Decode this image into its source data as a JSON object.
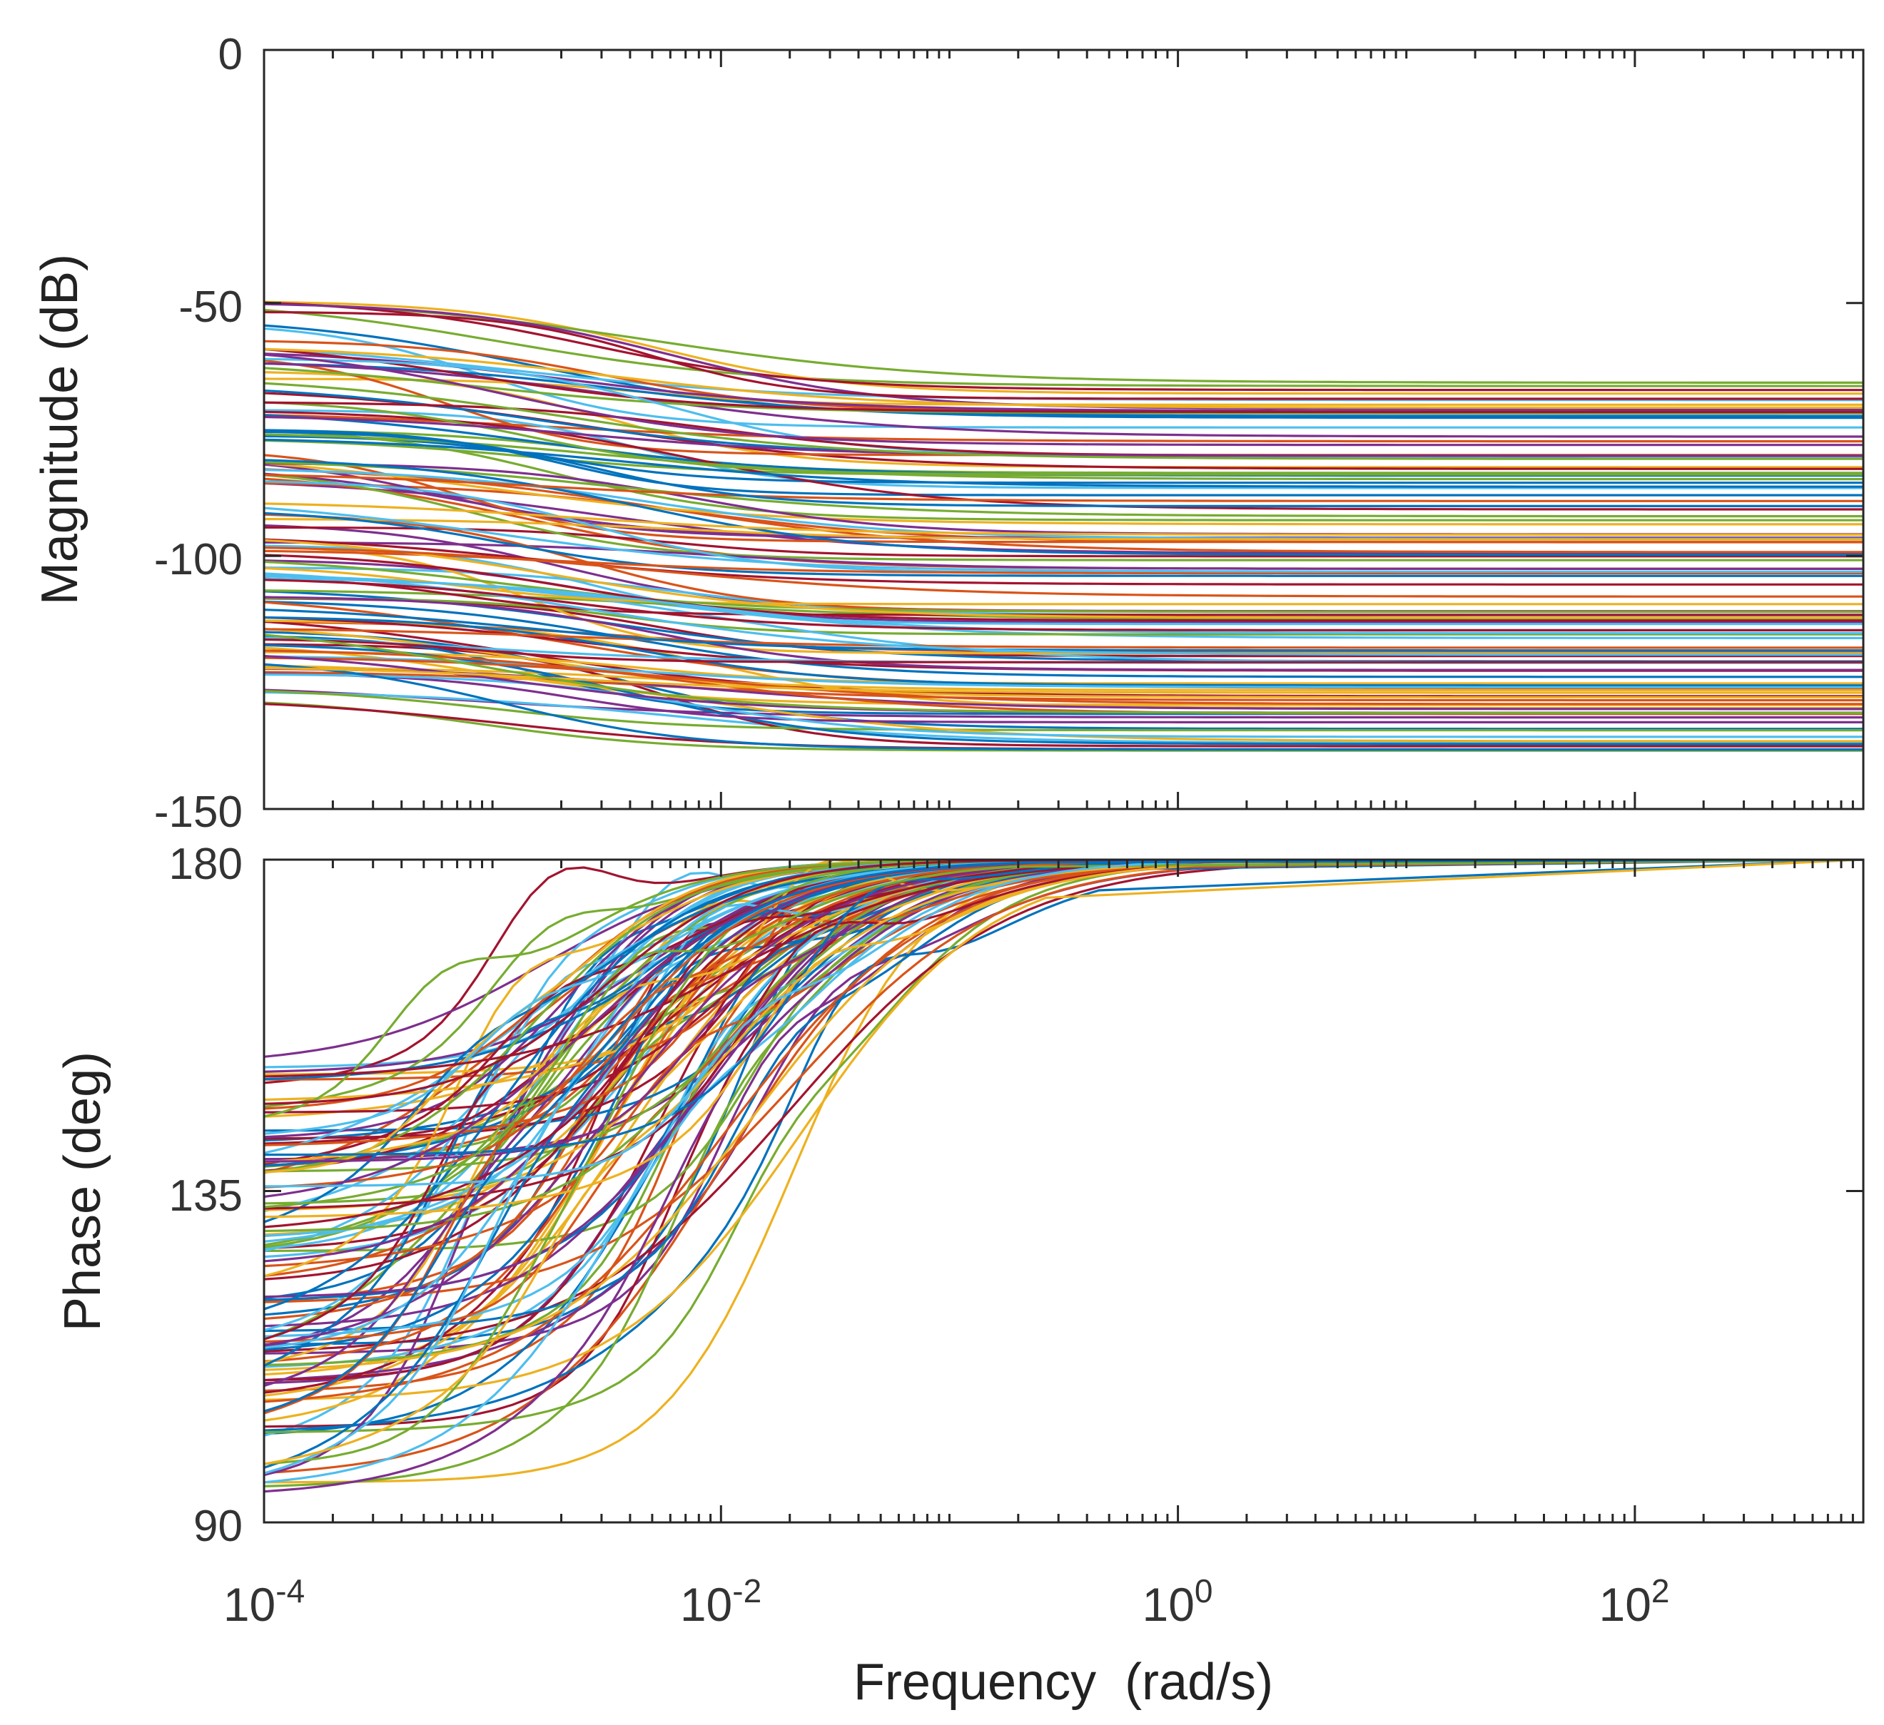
{
  "chart_data": [
    {
      "id": "magnitude",
      "type": "line",
      "xscale": "log",
      "xlim": [
        0.0001,
        1000
      ],
      "ylim": [
        -150,
        0
      ],
      "yticks": [
        0,
        -50,
        -100,
        -150
      ],
      "ytick_labels": [
        "0",
        "-50",
        "-100",
        "-150"
      ],
      "xlabel": "",
      "ylabel": "Magnitude (dB)",
      "grid": false,
      "series_count": 120,
      "series_low_freq_range_db": [
        -128,
        -49
      ],
      "series_high_freq_range_db": [
        -139,
        -65
      ],
      "settling_frequency_range_rad_s": [
        0.002,
        0.3
      ]
    },
    {
      "id": "phase",
      "type": "line",
      "xscale": "log",
      "xlim": [
        0.0001,
        1000
      ],
      "ylim": [
        90,
        180
      ],
      "yticks": [
        180,
        135,
        90
      ],
      "ytick_labels": [
        "180",
        "135",
        "90"
      ],
      "xticks": [
        0.0001,
        0.01,
        1,
        100
      ],
      "xtick_labels": [
        {
          "base": "10",
          "exp": "-4"
        },
        {
          "base": "10",
          "exp": "-2"
        },
        {
          "base": "10",
          "exp": "0"
        },
        {
          "base": "10",
          "exp": "2"
        }
      ],
      "xlabel": "Frequency  (rad/s)",
      "ylabel": "Phase (deg)",
      "grid": false,
      "series_count": 120,
      "series_low_freq_range_deg": [
        93,
        152
      ],
      "series_high_freq_value_deg": 180
    }
  ],
  "colors": {
    "series": [
      "#0072BD",
      "#D95319",
      "#EDB120",
      "#7E2F8E",
      "#77AC30",
      "#4DBEEE",
      "#A2142F"
    ],
    "axes": "#262626",
    "tick_text": "#333333"
  }
}
